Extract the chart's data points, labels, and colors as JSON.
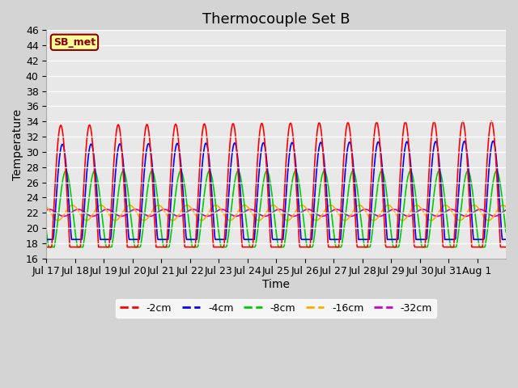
{
  "title": "Thermocouple Set B",
  "xlabel": "Time",
  "ylabel": "Temperature",
  "annotation": "SB_met",
  "ylim": [
    16,
    46
  ],
  "yticks": [
    16,
    18,
    20,
    22,
    24,
    26,
    28,
    30,
    32,
    34,
    36,
    38,
    40,
    42,
    44,
    46
  ],
  "xtick_labels": [
    "Jul 17",
    "Jul 18",
    "Jul 19",
    "Jul 20",
    "Jul 21",
    "Jul 22",
    "Jul 23",
    "Jul 24",
    "Jul 25",
    "Jul 26",
    "Jul 27",
    "Jul 28",
    "Jul 29",
    "Jul 30",
    "Jul 31",
    "Aug 1"
  ],
  "series": {
    "-2cm": {
      "color": "#ff0000",
      "linewidth": 1.2
    },
    "-4cm": {
      "color": "#0000ff",
      "linewidth": 1.2
    },
    "-8cm": {
      "color": "#00cc00",
      "linewidth": 1.2
    },
    "-16cm": {
      "color": "#ffaa00",
      "linewidth": 1.2
    },
    "-32cm": {
      "color": "#cc00cc",
      "linewidth": 1.2
    }
  },
  "plot_bg_color": "#e8e8e8",
  "fig_bg_color": "#d4d4d4",
  "grid_color": "#ffffff",
  "title_fontsize": 13,
  "axis_label_fontsize": 10,
  "tick_fontsize": 9
}
